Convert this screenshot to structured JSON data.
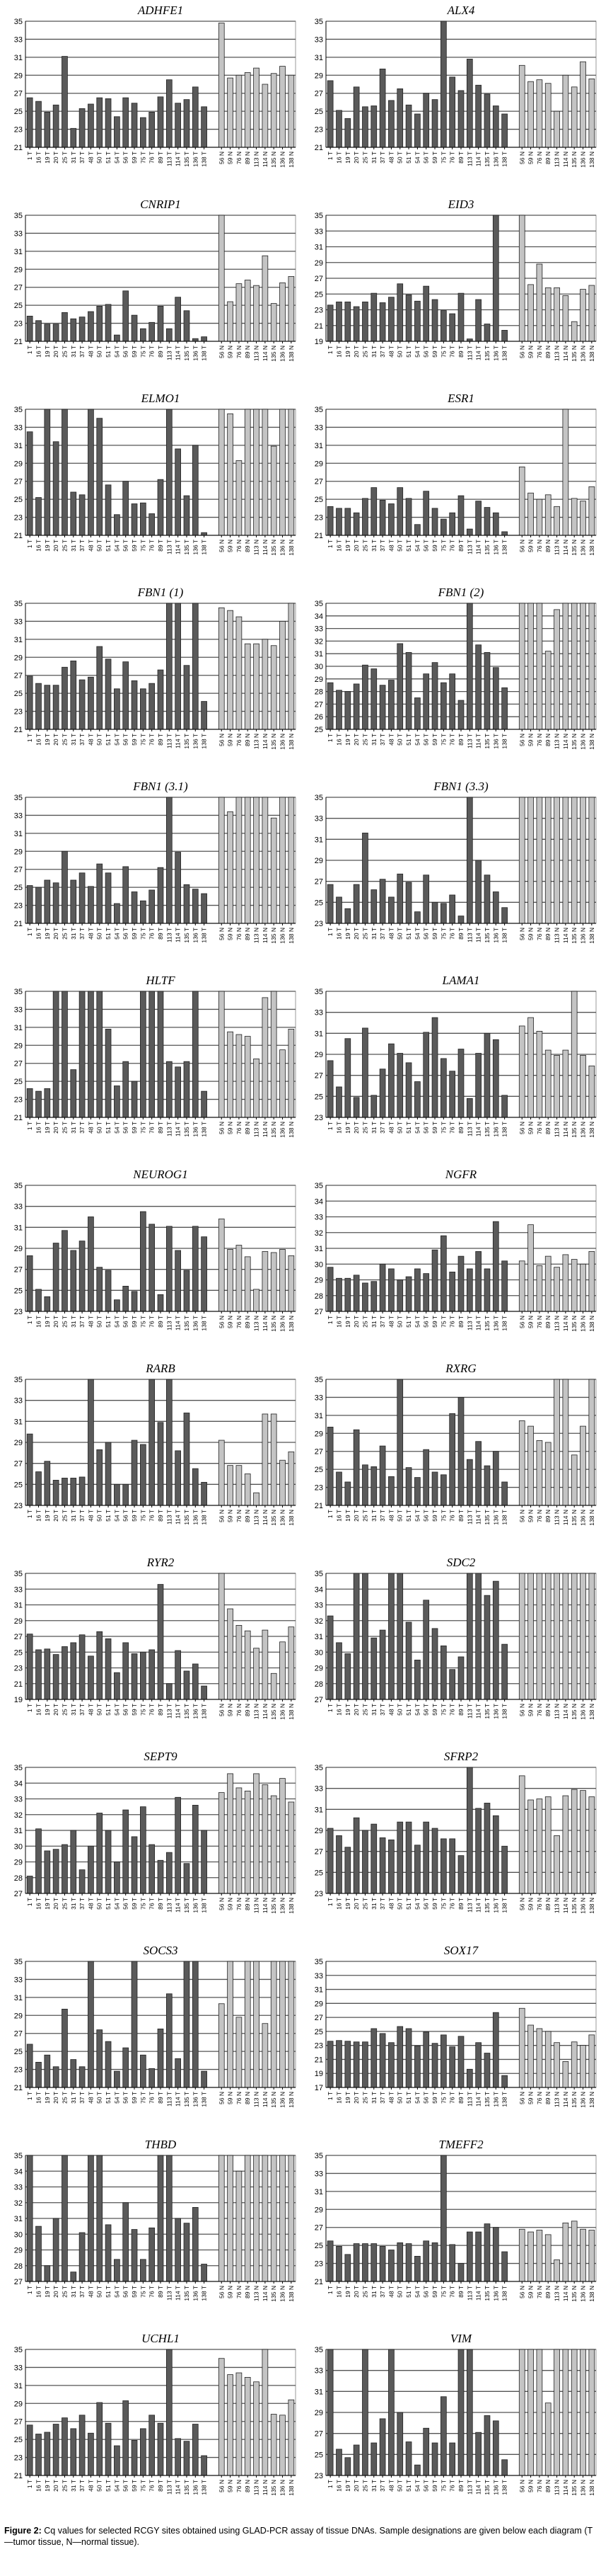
{
  "categories": [
    "1 T",
    "16 T",
    "19 T",
    "20 T",
    "25 T",
    "31 T",
    "37 T",
    "48 T",
    "50 T",
    "51 T",
    "54 T",
    "56 T",
    "59 T",
    "75 T",
    "76 T",
    "89 T",
    "113 T",
    "114 T",
    "135 T",
    "136 T",
    "138 T",
    "56 N",
    "59 N",
    "76 N",
    "89 N",
    "113 N",
    "114 N",
    "135 N",
    "136 N",
    "138 N"
  ],
  "colors": {
    "tumor": "#5a5a5a",
    "normal": "#c4c4c4",
    "grid": "#555555"
  },
  "caption": {
    "label": "Figure 2:",
    "text": "Cq values for selected RCGY sites obtained using GLAD-PCR assay of tissue DNAs. Sample designations are given below each diagram (T—tumor tissue, N—normal tissue)."
  },
  "chart_data": [
    {
      "type": "bar",
      "title": "ADHFE1",
      "ylim": [
        21,
        35
      ],
      "ystep": 2,
      "values": [
        26.5,
        26.1,
        24.9,
        25.7,
        31.1,
        23.1,
        25.3,
        25.8,
        26.5,
        26.4,
        24.4,
        26.5,
        25.9,
        24.3,
        24.9,
        26.6,
        28.5,
        25.9,
        26.3,
        27.7,
        25.5,
        34.8,
        28.7,
        29.0,
        29.3,
        29.8,
        28.0,
        29.2,
        30.0,
        29.0
      ]
    },
    {
      "type": "bar",
      "title": "ALX4",
      "ylim": [
        21,
        35
      ],
      "ystep": 2,
      "values": [
        28.4,
        25.1,
        24.2,
        27.7,
        25.5,
        25.6,
        29.7,
        26.2,
        27.5,
        25.7,
        24.7,
        27.0,
        26.3,
        35,
        28.8,
        27.3,
        30.8,
        27.9,
        26.9,
        25.6,
        24.7,
        30.1,
        28.3,
        28.5,
        28.1,
        25.0,
        29.0,
        27.7,
        30.5,
        28.6
      ]
    },
    {
      "type": "bar",
      "title": "CNRIP1",
      "ylim": [
        21,
        35
      ],
      "ystep": 2,
      "values": [
        23.8,
        23.3,
        22.9,
        22.9,
        24.2,
        23.5,
        23.7,
        24.3,
        24.9,
        25.1,
        21.7,
        26.6,
        23.9,
        22.4,
        23.1,
        24.9,
        22.4,
        25.9,
        24.4,
        21.3,
        21.5,
        35,
        25.4,
        27.4,
        27.8,
        27.2,
        30.5,
        25.2,
        27.5,
        28.2
      ]
    },
    {
      "type": "bar",
      "title": "EID3",
      "ylim": [
        19,
        35
      ],
      "ystep": 2,
      "values": [
        23.6,
        24.0,
        24.0,
        23.4,
        24.0,
        25.1,
        23.9,
        24.6,
        26.3,
        24.9,
        24.1,
        26.0,
        24.3,
        22.9,
        22.5,
        25.1,
        19.3,
        24.3,
        21.2,
        35,
        20.4,
        35,
        26.2,
        28.8,
        25.8,
        25.8,
        24.8,
        21.5,
        25.6,
        26.1
      ]
    },
    {
      "type": "bar",
      "title": "ELMO1",
      "ylim": [
        21,
        35
      ],
      "ystep": 2,
      "values": [
        32.5,
        25.2,
        35,
        31.4,
        35,
        25.8,
        25.5,
        35,
        34,
        26.6,
        23.3,
        27.0,
        24.5,
        24.6,
        23.4,
        27.2,
        35,
        30.6,
        25.4,
        31.0,
        21.3,
        35,
        34.5,
        29.3,
        35,
        35,
        35,
        30.9,
        35,
        35
      ]
    },
    {
      "type": "bar",
      "title": "ESR1",
      "ylim": [
        21,
        35
      ],
      "ystep": 2,
      "values": [
        24.2,
        24.0,
        24.0,
        23.5,
        25.1,
        26.3,
        24.9,
        24.5,
        26.3,
        25.1,
        22.2,
        25.9,
        24.0,
        22.8,
        23.5,
        25.4,
        21.7,
        24.8,
        24.1,
        23.5,
        21.4,
        28.6,
        25.7,
        25.0,
        25.5,
        24.2,
        35,
        25.1,
        24.8,
        26.4
      ]
    },
    {
      "type": "bar",
      "title": "FBN1 (1)",
      "ylim": [
        21,
        35
      ],
      "ystep": 2,
      "values": [
        26.9,
        26.1,
        25.9,
        25.9,
        27.9,
        28.6,
        26.5,
        26.8,
        30.2,
        28.8,
        25.5,
        28.5,
        26.4,
        25.5,
        26.1,
        27.6,
        35,
        35,
        28.1,
        35,
        24.1,
        34.5,
        34.2,
        33.5,
        30.5,
        30.5,
        31,
        30.3,
        33,
        35
      ]
    },
    {
      "type": "bar",
      "title": "FBN1 (2)",
      "ylim": [
        25,
        35
      ],
      "ystep": 1,
      "values": [
        28.7,
        28.1,
        28.0,
        28.6,
        30.1,
        29.8,
        28.5,
        28.9,
        31.8,
        31.1,
        27.5,
        29.4,
        30.3,
        28.7,
        29.4,
        27.3,
        35,
        31.7,
        31.1,
        29.9,
        28.3,
        35,
        35,
        35,
        31.2,
        34.5,
        35,
        35,
        35,
        35
      ]
    },
    {
      "type": "bar",
      "title": "FBN1 (3.1)",
      "ylim": [
        21,
        35
      ],
      "ystep": 2,
      "values": [
        25.2,
        25.0,
        25.8,
        25.5,
        29.0,
        25.8,
        26.6,
        25.1,
        27.6,
        26.6,
        23.2,
        27.3,
        24.5,
        23.5,
        24.7,
        27.2,
        35,
        28.9,
        25.3,
        24.8,
        24.3,
        35,
        33.4,
        35,
        35,
        35,
        35,
        32.7,
        35,
        35
      ]
    },
    {
      "type": "bar",
      "title": "FBN1 (3.3)",
      "ylim": [
        23,
        35
      ],
      "ystep": 2,
      "values": [
        26.7,
        25.5,
        24.4,
        26.7,
        31.6,
        26.2,
        27.2,
        25.5,
        27.7,
        26.9,
        24.1,
        27.6,
        25.0,
        24.9,
        25.7,
        23.7,
        35,
        29.0,
        27.6,
        26.0,
        24.5,
        35,
        35,
        35,
        35,
        35,
        35,
        35,
        35,
        35
      ]
    },
    {
      "type": "bar",
      "title": "HLTF",
      "ylim": [
        21,
        35
      ],
      "ystep": 2,
      "values": [
        24.2,
        23.9,
        24.2,
        35,
        35,
        26.3,
        35,
        35,
        35,
        30.8,
        24.5,
        27.2,
        25.0,
        35,
        35,
        35,
        27.2,
        26.6,
        27.2,
        35,
        23.9,
        35,
        30.5,
        30.2,
        30.0,
        27.5,
        34.3,
        35,
        28.5,
        30.8
      ]
    },
    {
      "type": "bar",
      "title": "LAMA1",
      "ylim": [
        23,
        35
      ],
      "ystep": 2,
      "values": [
        28.4,
        25.9,
        30.5,
        24.9,
        31.5,
        25.1,
        27.6,
        30.0,
        29.1,
        28.2,
        26.4,
        31.1,
        32.5,
        28.6,
        27.4,
        29.5,
        24.8,
        29.1,
        31.0,
        30.4,
        25.1,
        31.7,
        32.5,
        31.2,
        29.4,
        28.9,
        29.4,
        35,
        28.9,
        27.9
      ]
    },
    {
      "type": "bar",
      "title": "NEUROG1",
      "ylim": [
        23,
        35
      ],
      "ystep": 2,
      "values": [
        28.3,
        25.1,
        24.4,
        29.5,
        30.7,
        28.8,
        29.7,
        32.0,
        27.2,
        26.9,
        24.1,
        25.4,
        24.9,
        32.5,
        31.3,
        24.6,
        31.1,
        28.8,
        26.9,
        31.1,
        30.1,
        31.8,
        28.9,
        29.3,
        28.2,
        25.1,
        28.7,
        28.6,
        28.9,
        28.3
      ]
    },
    {
      "type": "bar",
      "title": "NGFR",
      "ylim": [
        27,
        35
      ],
      "ystep": 1,
      "values": [
        29.8,
        29.1,
        29.1,
        29.3,
        28.8,
        28.9,
        30.0,
        29.7,
        29.0,
        29.2,
        29.7,
        29.4,
        30.9,
        31.8,
        29.5,
        30.5,
        29.7,
        30.8,
        29.7,
        32.7,
        30.2,
        30.2,
        32.5,
        29.9,
        30.5,
        29.8,
        30.6,
        30.3,
        30.0,
        30.8
      ]
    },
    {
      "type": "bar",
      "title": "RARB",
      "ylim": [
        23,
        35
      ],
      "ystep": 2,
      "values": [
        29.8,
        26.2,
        27.2,
        25.4,
        25.6,
        25.6,
        25.7,
        35,
        28.3,
        29.0,
        25.0,
        25.0,
        29.2,
        28.8,
        35,
        30.9,
        35,
        28.2,
        31.8,
        26.5,
        25.2,
        29.2,
        26.8,
        26.8,
        26.0,
        24.2,
        31.7,
        31.7,
        27.3,
        28.1
      ]
    },
    {
      "type": "bar",
      "title": "RXRG",
      "ylim": [
        21,
        35
      ],
      "ystep": 2,
      "values": [
        29.7,
        24.7,
        23.6,
        29.4,
        25.5,
        25.3,
        27.6,
        24.2,
        35,
        25.2,
        24.1,
        27.2,
        24.7,
        24.4,
        31.2,
        33.0,
        26.1,
        28.1,
        25.4,
        27.0,
        23.6,
        30.4,
        29.8,
        28.2,
        28.0,
        35,
        35,
        26.6,
        29.8,
        35
      ]
    },
    {
      "type": "bar",
      "title": "RYR2",
      "ylim": [
        19,
        35
      ],
      "ystep": 2,
      "values": [
        27.3,
        25.3,
        25.4,
        24.7,
        25.7,
        26.2,
        27.2,
        24.5,
        27.6,
        26.7,
        22.4,
        26.2,
        24.8,
        25.0,
        25.3,
        33.6,
        21.0,
        25.2,
        22.6,
        23.5,
        20.7,
        35,
        30.5,
        28.4,
        27.7,
        25.5,
        27.8,
        22.3,
        26.3,
        28.2
      ]
    },
    {
      "type": "bar",
      "title": "SDC2",
      "ylim": [
        27,
        35
      ],
      "ystep": 1,
      "values": [
        32.3,
        30.6,
        29.9,
        35,
        35,
        30.9,
        31.4,
        35,
        35,
        31.9,
        29.5,
        33.3,
        31.5,
        30.4,
        28.9,
        29.7,
        35,
        35,
        33.6,
        34.5,
        30.5,
        35,
        35,
        35,
        35,
        35,
        35,
        35,
        35,
        35
      ]
    },
    {
      "type": "bar",
      "title": "SEPT9",
      "ylim": [
        27,
        35
      ],
      "ystep": 1,
      "values": [
        28.1,
        31.1,
        29.7,
        29.8,
        30.1,
        31.0,
        28.5,
        30.0,
        32.1,
        31.0,
        29.0,
        32.3,
        30.6,
        32.5,
        30.1,
        29.1,
        29.6,
        33.1,
        28.9,
        32.6,
        31.0,
        33.4,
        34.6,
        33.7,
        33.5,
        34.6,
        33.9,
        33.2,
        34.3,
        32.8
      ]
    },
    {
      "type": "bar",
      "title": "SFRP2",
      "ylim": [
        23,
        35
      ],
      "ystep": 2,
      "values": [
        29.2,
        28.5,
        27.4,
        30.2,
        29.0,
        29.6,
        28.3,
        28.1,
        29.8,
        29.8,
        27.6,
        29.8,
        29.2,
        28.2,
        28.2,
        26.6,
        35,
        31.1,
        31.6,
        30.4,
        27.5,
        34.2,
        31.9,
        32.0,
        32.2,
        28.5,
        32.3,
        32.9,
        32.8,
        32.2
      ]
    },
    {
      "type": "bar",
      "title": "SOCS3",
      "ylim": [
        21,
        35
      ],
      "ystep": 2,
      "values": [
        25.8,
        23.8,
        24.6,
        23.3,
        29.7,
        24.1,
        23.3,
        35,
        27.4,
        26.1,
        22.8,
        25.4,
        35,
        24.6,
        23.1,
        27.5,
        31.4,
        24.2,
        35,
        35,
        22.8,
        30.3,
        35,
        28.8,
        35,
        35,
        28.1,
        35,
        35,
        35
      ]
    },
    {
      "type": "bar",
      "title": "SOX17",
      "ylim": [
        17,
        35
      ],
      "ystep": 2,
      "values": [
        23.6,
        23.7,
        23.6,
        23.5,
        23.5,
        25.4,
        24.7,
        23.4,
        25.7,
        25.4,
        22.9,
        24.9,
        23.3,
        24.5,
        22.8,
        24.3,
        19.6,
        23.4,
        21.9,
        27.7,
        18.7,
        28.3,
        25.9,
        25.4,
        25.0,
        23.4,
        20.7,
        23.5,
        23.0,
        24.5
      ]
    },
    {
      "type": "bar",
      "title": "THBD",
      "ylim": [
        27,
        35
      ],
      "ystep": 1,
      "values": [
        35,
        30.5,
        28.0,
        31.0,
        35,
        27.6,
        30.1,
        35,
        35,
        30.6,
        28.4,
        32.0,
        30.3,
        28.4,
        30.4,
        35,
        35,
        31.0,
        30.7,
        31.7,
        28.1,
        35,
        35,
        34.0,
        35,
        35,
        35,
        35,
        35,
        35
      ]
    },
    {
      "type": "bar",
      "title": "TMEFF2",
      "ylim": [
        21,
        35
      ],
      "ystep": 2,
      "values": [
        25.5,
        24.9,
        24.0,
        25.2,
        25.2,
        25.2,
        24.9,
        24.5,
        25.3,
        25.2,
        23.8,
        25.5,
        25.3,
        35,
        25.1,
        23.0,
        26.5,
        26.5,
        27.4,
        27.0,
        24.3,
        26.8,
        26.5,
        26.7,
        26.2,
        23.4,
        27.5,
        27.7,
        26.8,
        26.7
      ]
    },
    {
      "type": "bar",
      "title": "UCHL1",
      "ylim": [
        21,
        35
      ],
      "ystep": 2,
      "values": [
        26.6,
        25.6,
        25.8,
        26.7,
        27.4,
        26.2,
        27.7,
        25.7,
        29.1,
        26.8,
        24.3,
        29.3,
        24.9,
        26.2,
        27.7,
        26.8,
        35,
        25.1,
        24.8,
        26.7,
        23.2,
        34.0,
        32.2,
        32.4,
        31.9,
        31.4,
        35,
        27.8,
        27.7,
        29.4
      ]
    },
    {
      "type": "bar",
      "title": "VIM",
      "ylim": [
        23,
        35
      ],
      "ystep": 2,
      "values": [
        35,
        25.5,
        24.7,
        25.9,
        35,
        26.1,
        28.4,
        35,
        29.0,
        26.2,
        24.0,
        27.5,
        26.1,
        30.5,
        26.1,
        35,
        35,
        27.1,
        28.7,
        28.2,
        24.5,
        35,
        35,
        35,
        29.9,
        35,
        35,
        35,
        35,
        35
      ]
    }
  ]
}
